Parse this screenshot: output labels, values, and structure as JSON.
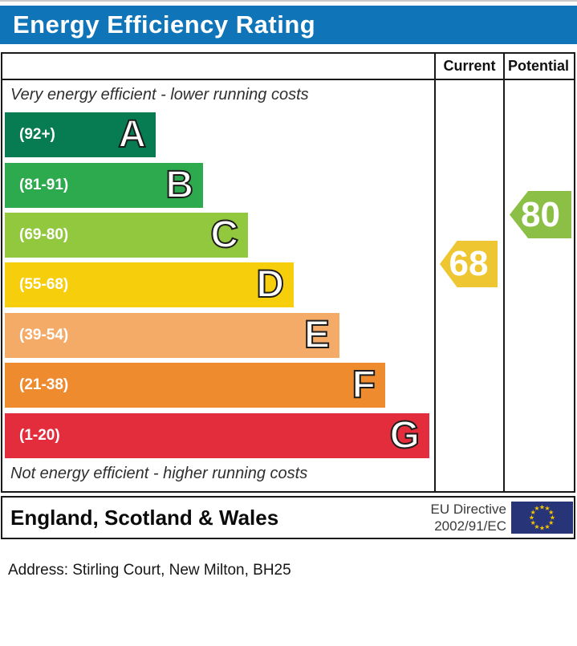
{
  "title": "Energy Efficiency Rating",
  "columns": {
    "current": "Current",
    "potential": "Potential"
  },
  "top_note": "Very energy efficient - lower running costs",
  "bottom_note": "Not energy efficient - higher running costs",
  "bands": [
    {
      "letter": "A",
      "range": "(92+)",
      "color": "#077c52"
    },
    {
      "letter": "B",
      "range": "(81-91)",
      "color": "#2da94e"
    },
    {
      "letter": "C",
      "range": "(69-80)",
      "color": "#92c83e"
    },
    {
      "letter": "D",
      "range": "(55-68)",
      "color": "#f6ce0c"
    },
    {
      "letter": "E",
      "range": "(39-54)",
      "color": "#f5ab68"
    },
    {
      "letter": "F",
      "range": "(21-38)",
      "color": "#ee8b2f"
    },
    {
      "letter": "G",
      "range": "(1-20)",
      "color": "#e42d3c"
    }
  ],
  "ratings": {
    "current": {
      "value": "68",
      "color": "#eec632"
    },
    "potential": {
      "value": "80",
      "color": "#8bbf45"
    }
  },
  "footer": {
    "region": "England, Scotland & Wales",
    "directive_line1": "EU Directive",
    "directive_line2": "2002/91/EC",
    "flag_blue": "#283478",
    "flag_star": "#f7c500"
  },
  "header_blue": "#1074b8",
  "address_line": "Address: Stirling Court, New Milton, BH25",
  "chart_data": {
    "type": "bar",
    "title": "Energy Efficiency Rating",
    "categories": [
      "A (92+)",
      "B (81-91)",
      "C (69-80)",
      "D (55-68)",
      "E (39-54)",
      "F (21-38)",
      "G (1-20)"
    ],
    "band_colors": [
      "#077c52",
      "#2da94e",
      "#92c83e",
      "#f6ce0c",
      "#f5ab68",
      "#ee8b2f",
      "#e42d3c"
    ],
    "current_rating": 68,
    "current_band": "D",
    "potential_rating": 80,
    "potential_band": "C",
    "scale_min": 1,
    "scale_max": 100,
    "region": "England, Scotland & Wales",
    "directive": "EU Directive 2002/91/EC",
    "legend_position": "top-right-columns"
  }
}
